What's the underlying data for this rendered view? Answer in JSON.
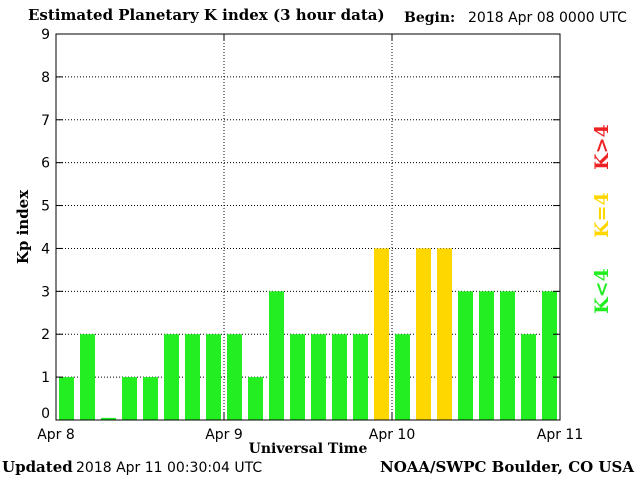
{
  "header": {
    "title": "Estimated Planetary K index (3 hour data)",
    "begin_label": "Begin:",
    "begin_value": "2018 Apr 08 0000 UTC"
  },
  "footer": {
    "updated_label": "Updated",
    "updated_value": "2018 Apr 11 00:30:04 UTC",
    "credit": "NOAA/SWPC Boulder, CO USA"
  },
  "legend": {
    "k_less": "K<4",
    "k_equal": "K=4",
    "k_greater": "K>4"
  },
  "colors": {
    "k_less": "#22ee22",
    "k_equal": "#ffd700",
    "k_greater": "#ee2222"
  },
  "chart_data": {
    "type": "bar",
    "title": "Estimated Planetary K index (3 hour data)",
    "xlabel": "Universal Time",
    "ylabel": "Kp index",
    "ylim": [
      0,
      9
    ],
    "yticks": [
      "0",
      "1",
      "2",
      "3",
      "4",
      "5",
      "6",
      "7",
      "8",
      "9"
    ],
    "xticks": [
      "Apr 8",
      "Apr 9",
      "Apr 10",
      "Apr 11"
    ],
    "values": [
      1,
      2,
      0.05,
      1,
      1,
      2,
      2,
      2,
      2,
      1,
      3,
      2,
      2,
      2,
      2,
      4,
      2,
      4,
      4,
      3,
      3,
      3,
      2,
      3
    ],
    "grid": true
  }
}
